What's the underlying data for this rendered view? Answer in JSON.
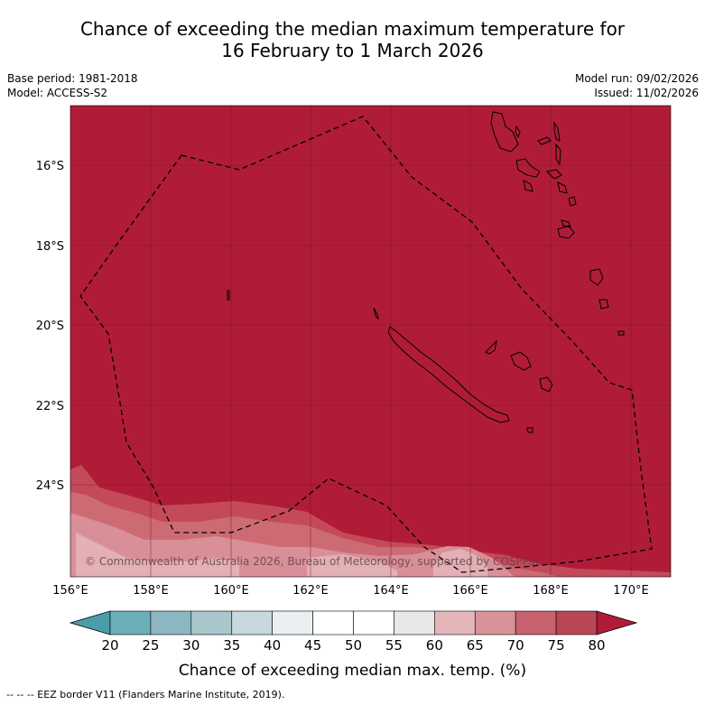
{
  "title": {
    "line1": "Chance of exceeding the median maximum temperature for",
    "line2": "16 February to 1 March 2026"
  },
  "meta": {
    "base_period": "Base period: 1981-2018",
    "model": "Model: ACCESS-S2",
    "model_run": "Model run: 09/02/2026",
    "issued": "Issued: 11/02/2026"
  },
  "copyright": "© Commonwealth of Australia 2026, Bureau of Meteorology, supported by COSPPac",
  "axes": {
    "lon_labels": [
      "156°E",
      "158°E",
      "160°E",
      "162°E",
      "164°E",
      "166°E",
      "168°E",
      "170°E"
    ],
    "lat_labels": [
      "16°S",
      "18°S",
      "20°S",
      "22°S",
      "24°S"
    ]
  },
  "colorbar": {
    "ticks": [
      "20",
      "25",
      "30",
      "35",
      "40",
      "45",
      "50",
      "55",
      "60",
      "65",
      "70",
      "75",
      "80"
    ],
    "colors": [
      "#6aaeba",
      "#8cb6c1",
      "#a8c6cb",
      "#c8d8dc",
      "#eaf0f2",
      "#ffffff",
      "#ffffff",
      "#e8e8e8",
      "#e3b6ba",
      "#d8929a",
      "#c8626e",
      "#b84656"
    ],
    "under_color": "#4a9eaa",
    "over_color": "#b01c38",
    "label": "Chance of exceeding median max. temp. (%)"
  },
  "colors": {
    "base": "#b01c38",
    "band75": "#c44a5a",
    "band70": "#cd6b75",
    "band65": "#d98f97",
    "band60": "#e3b0b5"
  },
  "footnote": "--  --  -- EEZ border V11 (Flanders Marine Institute, 2019)."
}
